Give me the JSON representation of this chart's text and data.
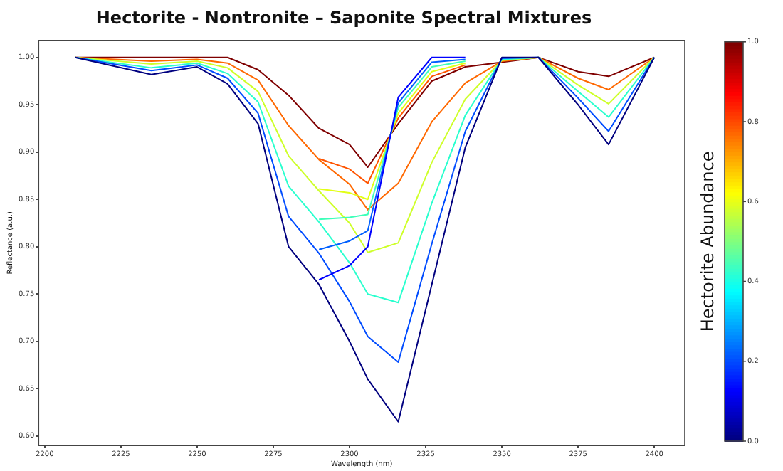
{
  "chart_data": {
    "type": "line",
    "title": "Hectorite - Nontronite – Saponite Spectral Mixtures",
    "xlabel": "Wavelength (nm)",
    "ylabel": "Reflectance (a.u.)",
    "clabel": "Hectorite Abundance",
    "x": [
      2210,
      2235,
      2250,
      2260,
      2270,
      2280,
      2290,
      2300,
      2306,
      2316,
      2327,
      2338,
      2350,
      2362,
      2375,
      2385,
      2400
    ],
    "series": [
      {
        "color": "#00007f",
        "values": [
          1.0,
          0.982,
          0.99,
          0.972,
          0.93,
          0.8,
          0.76,
          0.7,
          0.66,
          0.615,
          0.76,
          0.905,
          1.0,
          1.0,
          0.95,
          0.908,
          1.0
        ]
      },
      {
        "color": "#0000ff",
        "x": [
          2290,
          2300,
          2306,
          2316,
          2327,
          2338
        ],
        "values": [
          0.765,
          0.78,
          0.8,
          0.958,
          1.0,
          1.0
        ]
      },
      {
        "color": "#004cff",
        "values": [
          1.0,
          0.986,
          0.992,
          0.978,
          0.941,
          0.832,
          0.793,
          0.742,
          0.705,
          0.678,
          0.803,
          0.922,
          0.999,
          1.0,
          0.957,
          0.922,
          1.0
        ]
      },
      {
        "color": "#0060ff",
        "x": [
          2290,
          2300,
          2306,
          2316,
          2327,
          2338
        ],
        "values": [
          0.797,
          0.806,
          0.817,
          0.952,
          0.995,
          0.998
        ]
      },
      {
        "color": "#29ffce",
        "values": [
          1.0,
          0.989,
          0.994,
          0.983,
          0.953,
          0.864,
          0.826,
          0.783,
          0.75,
          0.741,
          0.846,
          0.939,
          0.998,
          1.0,
          0.964,
          0.937,
          1.0
        ]
      },
      {
        "color": "#3dffb9",
        "x": [
          2290,
          2300,
          2306,
          2316,
          2327,
          2338
        ],
        "values": [
          0.829,
          0.831,
          0.834,
          0.947,
          0.99,
          0.996
        ]
      },
      {
        "color": "#ceff29",
        "values": [
          1.0,
          0.993,
          0.996,
          0.989,
          0.964,
          0.896,
          0.859,
          0.825,
          0.794,
          0.804,
          0.889,
          0.956,
          0.997,
          1.0,
          0.971,
          0.951,
          1.0
        ]
      },
      {
        "color": "#e2ff15",
        "x": [
          2290,
          2300,
          2306,
          2316,
          2327,
          2338
        ],
        "values": [
          0.861,
          0.857,
          0.85,
          0.941,
          0.985,
          0.994
        ]
      },
      {
        "color": "#ff6800",
        "values": [
          1.0,
          0.996,
          0.998,
          0.994,
          0.976,
          0.928,
          0.892,
          0.866,
          0.839,
          0.867,
          0.932,
          0.973,
          0.996,
          1.0,
          0.978,
          0.966,
          1.0
        ]
      },
      {
        "color": "#ff5400",
        "x": [
          2290,
          2300,
          2306,
          2316,
          2327,
          2338
        ],
        "values": [
          0.893,
          0.882,
          0.867,
          0.936,
          0.98,
          0.992
        ]
      },
      {
        "color": "#7f0000",
        "values": [
          1.0,
          1.0,
          1.0,
          1.0,
          0.987,
          0.96,
          0.925,
          0.908,
          0.884,
          0.93,
          0.975,
          0.99,
          0.995,
          1.0,
          0.985,
          0.98,
          1.0
        ]
      }
    ],
    "xlim": [
      2198,
      2410
    ],
    "xticks": [
      2200,
      2225,
      2250,
      2275,
      2300,
      2325,
      2350,
      2375,
      2400
    ],
    "ylim": [
      0.59,
      1.018
    ],
    "yticks": [
      {
        "value": 0.6,
        "label": "0.60"
      },
      {
        "value": 0.65,
        "label": "0.65"
      },
      {
        "value": 0.7,
        "label": "0.70"
      },
      {
        "value": 0.75,
        "label": "0.75"
      },
      {
        "value": 0.8,
        "label": "0.80"
      },
      {
        "value": 0.85,
        "label": "0.85"
      },
      {
        "value": 0.9,
        "label": "0.90"
      },
      {
        "value": 0.95,
        "label": "0.95"
      },
      {
        "value": 1.0,
        "label": "1.00"
      }
    ],
    "clim": [
      0,
      1
    ],
    "cticks": [
      {
        "value": 0,
        "label": "0.0"
      },
      {
        "value": 0.2,
        "label": "0.2"
      },
      {
        "value": 0.4,
        "label": "0.4"
      },
      {
        "value": 0.6,
        "label": "0.6"
      },
      {
        "value": 0.8,
        "label": "0.8"
      },
      {
        "value": 1,
        "label": "1.0"
      }
    ],
    "grid": false,
    "legend": false,
    "marker": "none",
    "line_style": "solid"
  }
}
